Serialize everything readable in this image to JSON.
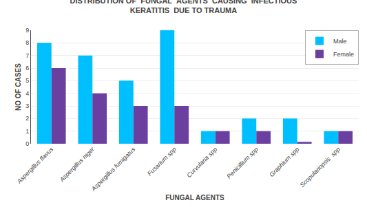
{
  "chart_data": {
    "type": "bar",
    "title": "DISTRIBUTION OF  FUNGAL  AGENTS  CAUSING  INFECTIOUS\nKERATITIS  DUE TO TRAUMA",
    "xlabel": "FUNGAL AGENTS",
    "ylabel": "NO OF CASES",
    "categories": [
      "Aspergillus flavus",
      "Aspergillus niger",
      "Aspergillus fumigatus",
      "Fusarium spp",
      "Curvularia spp",
      "Penicillium spp",
      "Graphium spp",
      "Scopulariopsis  spp"
    ],
    "series": [
      {
        "name": "Male",
        "color": "#00BFFF",
        "values": [
          8,
          7,
          5,
          9,
          1,
          2,
          2,
          1
        ]
      },
      {
        "name": "Female",
        "color": "#6B3FA0",
        "values": [
          6,
          4,
          3,
          3,
          1,
          1,
          0.15,
          1
        ]
      }
    ],
    "ylim": [
      0,
      9
    ],
    "yticks": [
      0,
      1,
      2,
      3,
      4,
      5,
      6,
      7,
      8,
      9
    ],
    "grid": true,
    "legend": "upper right"
  }
}
